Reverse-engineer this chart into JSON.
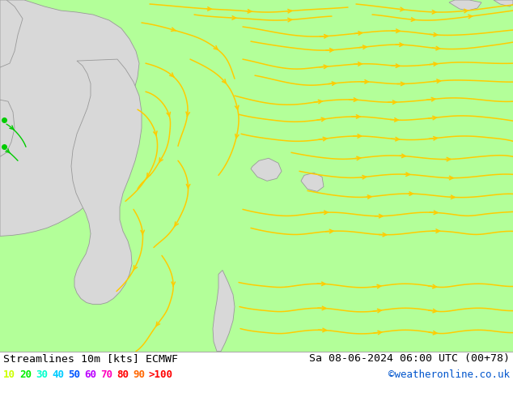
{
  "title_left": "Streamlines 10m [kts] ECMWF",
  "title_right": "Sa 08-06-2024 06:00 UTC (00+78)",
  "credit": "©weatheronline.co.uk",
  "map_bg": "#b3ff99",
  "land_color": "#d8d8d8",
  "land_edge": "#999999",
  "yellow": "#ffcc00",
  "green_dot": "#00cc00",
  "figsize": [
    6.34,
    4.9
  ],
  "dpi": 100,
  "legend_values": [
    "10",
    "20",
    "30",
    "40",
    "50",
    "60",
    "70",
    "80",
    "90",
    ">100"
  ],
  "legend_colors": [
    "#ccff00",
    "#00ee00",
    "#00ffcc",
    "#00ccff",
    "#0055ff",
    "#bb00ff",
    "#ff00bb",
    "#ff0000",
    "#ff6600",
    "#ff0000"
  ]
}
